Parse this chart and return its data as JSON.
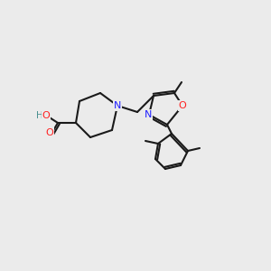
{
  "bg_color": "#ebebeb",
  "bond_color": "#1a1a1a",
  "bond_width": 1.5,
  "atom_colors": {
    "N": "#2020ff",
    "O": "#ff2020",
    "H": "#4a9090",
    "C": "#1a1a1a"
  },
  "font_size": 7.5
}
